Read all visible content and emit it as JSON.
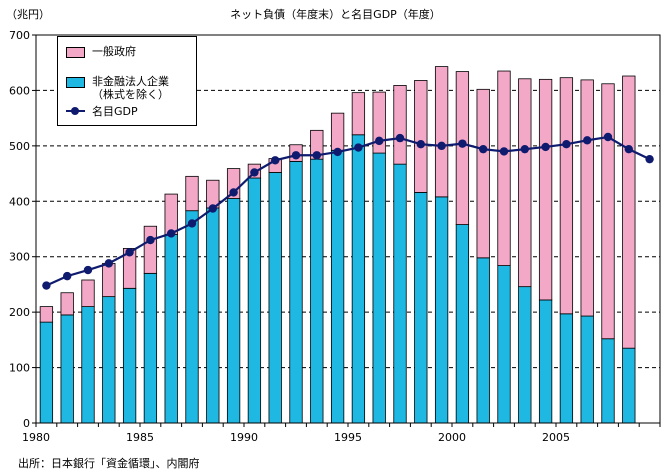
{
  "chart_data": {
    "type": "bar",
    "title": "ネット負債（年度末）と名目GDP（年度）",
    "ylabel": "（兆円）",
    "xlabel": "",
    "ylim": [
      0,
      700
    ],
    "yticks": [
      0,
      100,
      200,
      300,
      400,
      500,
      600,
      700
    ],
    "xticks": [
      1980,
      1985,
      1990,
      1995,
      2000,
      2005
    ],
    "xlim": [
      1980,
      2009
    ],
    "grid": true,
    "legend_position": "top-left",
    "legend": {
      "gov": "一般政府",
      "corp_line1": "非金融法人企業",
      "corp_line2": "（株式を除く）",
      "gdp": "名目GDP"
    },
    "colors": {
      "gov": "#f4a8c8",
      "corp": "#1fb8e3",
      "gdp": "#0f1b6e",
      "grid": "#000000"
    },
    "years": [
      1980,
      1981,
      1982,
      1983,
      1984,
      1985,
      1986,
      1987,
      1988,
      1989,
      1990,
      1991,
      1992,
      1993,
      1994,
      1995,
      1996,
      1997,
      1998,
      1999,
      2000,
      2001,
      2002,
      2003,
      2004,
      2005,
      2006,
      2007,
      2008
    ],
    "series": [
      {
        "name": "非金融法人企業（株式を除く）",
        "stack": "bottom",
        "values": [
          182,
          195,
          210,
          228,
          243,
          270,
          340,
          383,
          388,
          405,
          442,
          452,
          472,
          476,
          492,
          520,
          487,
          467,
          416,
          408,
          358,
          298,
          284,
          246,
          222,
          197,
          193,
          152,
          135
        ]
      },
      {
        "name": "一般政府",
        "stack": "top",
        "values": [
          28,
          40,
          48,
          60,
          72,
          85,
          73,
          62,
          50,
          54,
          25,
          25,
          30,
          52,
          67,
          76,
          110,
          142,
          202,
          235,
          276,
          304,
          351,
          375,
          398,
          426,
          426,
          460,
          491
        ]
      }
    ],
    "totals": [
      210,
      235,
      258,
      288,
      315,
      355,
      413,
      445,
      438,
      459,
      467,
      477,
      502,
      528,
      559,
      596,
      597,
      609,
      618,
      643,
      634,
      602,
      635,
      621,
      620,
      623,
      619,
      612,
      626
    ],
    "gdp": {
      "name": "名目GDP",
      "x": [
        1980,
        1981,
        1982,
        1983,
        1984,
        1985,
        1986,
        1987,
        1988,
        1989,
        1990,
        1991,
        1992,
        1993,
        1994,
        1995,
        1996,
        1997,
        1998,
        1999,
        2000,
        2001,
        2002,
        2003,
        2004,
        2005,
        2006,
        2007,
        2008,
        2009
      ],
      "values": [
        248,
        265,
        276,
        288,
        308,
        330,
        342,
        360,
        387,
        416,
        452,
        474,
        483,
        483,
        489,
        497,
        509,
        514,
        503,
        500,
        504,
        494,
        490,
        494,
        498,
        503,
        510,
        516,
        494,
        476
      ]
    }
  },
  "source": "出所：日本銀行「資金循環」、内閣府"
}
